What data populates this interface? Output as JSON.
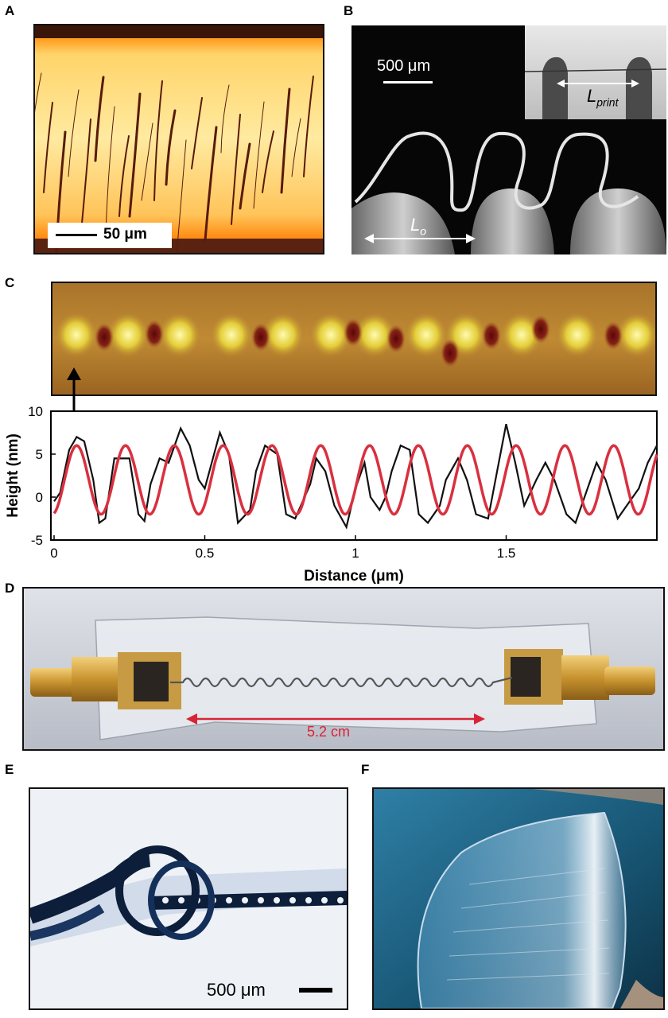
{
  "panels": {
    "A": {
      "label": "A",
      "scale_text": "50 μm"
    },
    "B": {
      "label": "B",
      "scale_text": "500 μm",
      "lprint_main": "L",
      "lprint_sub": "print",
      "lo_main": "L",
      "lo_sub": "o"
    },
    "C": {
      "label": "C"
    },
    "D": {
      "label": "D",
      "length_text": "5.2 cm"
    },
    "E": {
      "label": "E",
      "scale_text": "500 μm"
    },
    "F": {
      "label": "F"
    }
  },
  "chart_data": {
    "type": "line",
    "xlabel": "Distance (μm)",
    "ylabel": "Height (nm)",
    "xlim": [
      0,
      2.0
    ],
    "ylim": [
      -5,
      10
    ],
    "xticks": [
      0,
      0.5,
      1,
      1.5
    ],
    "xtick_labels": [
      "0",
      "0.5",
      "1",
      "1.5"
    ],
    "yticks": [
      -5,
      0,
      5,
      10
    ],
    "ytick_labels": [
      "-5",
      "0",
      "5",
      "10"
    ],
    "series": [
      {
        "color": "#111111",
        "style": "measured",
        "x": [
          0,
          0.02,
          0.05,
          0.075,
          0.1,
          0.13,
          0.15,
          0.17,
          0.2,
          0.25,
          0.28,
          0.3,
          0.32,
          0.35,
          0.38,
          0.42,
          0.45,
          0.48,
          0.5,
          0.55,
          0.58,
          0.61,
          0.65,
          0.67,
          0.7,
          0.74,
          0.77,
          0.8,
          0.85,
          0.87,
          0.9,
          0.93,
          0.97,
          1.0,
          1.03,
          1.05,
          1.08,
          1.1,
          1.12,
          1.15,
          1.18,
          1.21,
          1.24,
          1.28,
          1.3,
          1.34,
          1.37,
          1.4,
          1.44,
          1.47,
          1.5,
          1.53,
          1.56,
          1.6,
          1.63,
          1.66,
          1.7,
          1.73,
          1.77,
          1.8,
          1.83,
          1.87,
          1.9,
          1.94,
          1.97,
          2.0
        ],
        "y": [
          -0.5,
          0.5,
          5.5,
          7,
          6.5,
          2,
          -3,
          -2.5,
          4.5,
          4.5,
          -2,
          -2.8,
          1.5,
          4.5,
          4,
          8,
          6,
          2,
          1,
          7.5,
          5,
          -3,
          -1.5,
          3,
          6,
          5,
          -2,
          -2.5,
          1.5,
          4.5,
          3,
          -1,
          -3.5,
          1,
          4,
          0,
          -1.5,
          0,
          3,
          6,
          5.5,
          -2,
          -3,
          -1,
          2,
          4.5,
          2,
          -2,
          -2.5,
          3,
          8.5,
          4,
          -1,
          2,
          4,
          2,
          -2,
          -3,
          1,
          4,
          2,
          -2.5,
          -1,
          1,
          4,
          6
        ]
      },
      {
        "color": "#d9303f",
        "style": "fit",
        "amplitude": 4,
        "offset": 2,
        "period": 0.162,
        "phase_x": 0.075
      }
    ]
  }
}
